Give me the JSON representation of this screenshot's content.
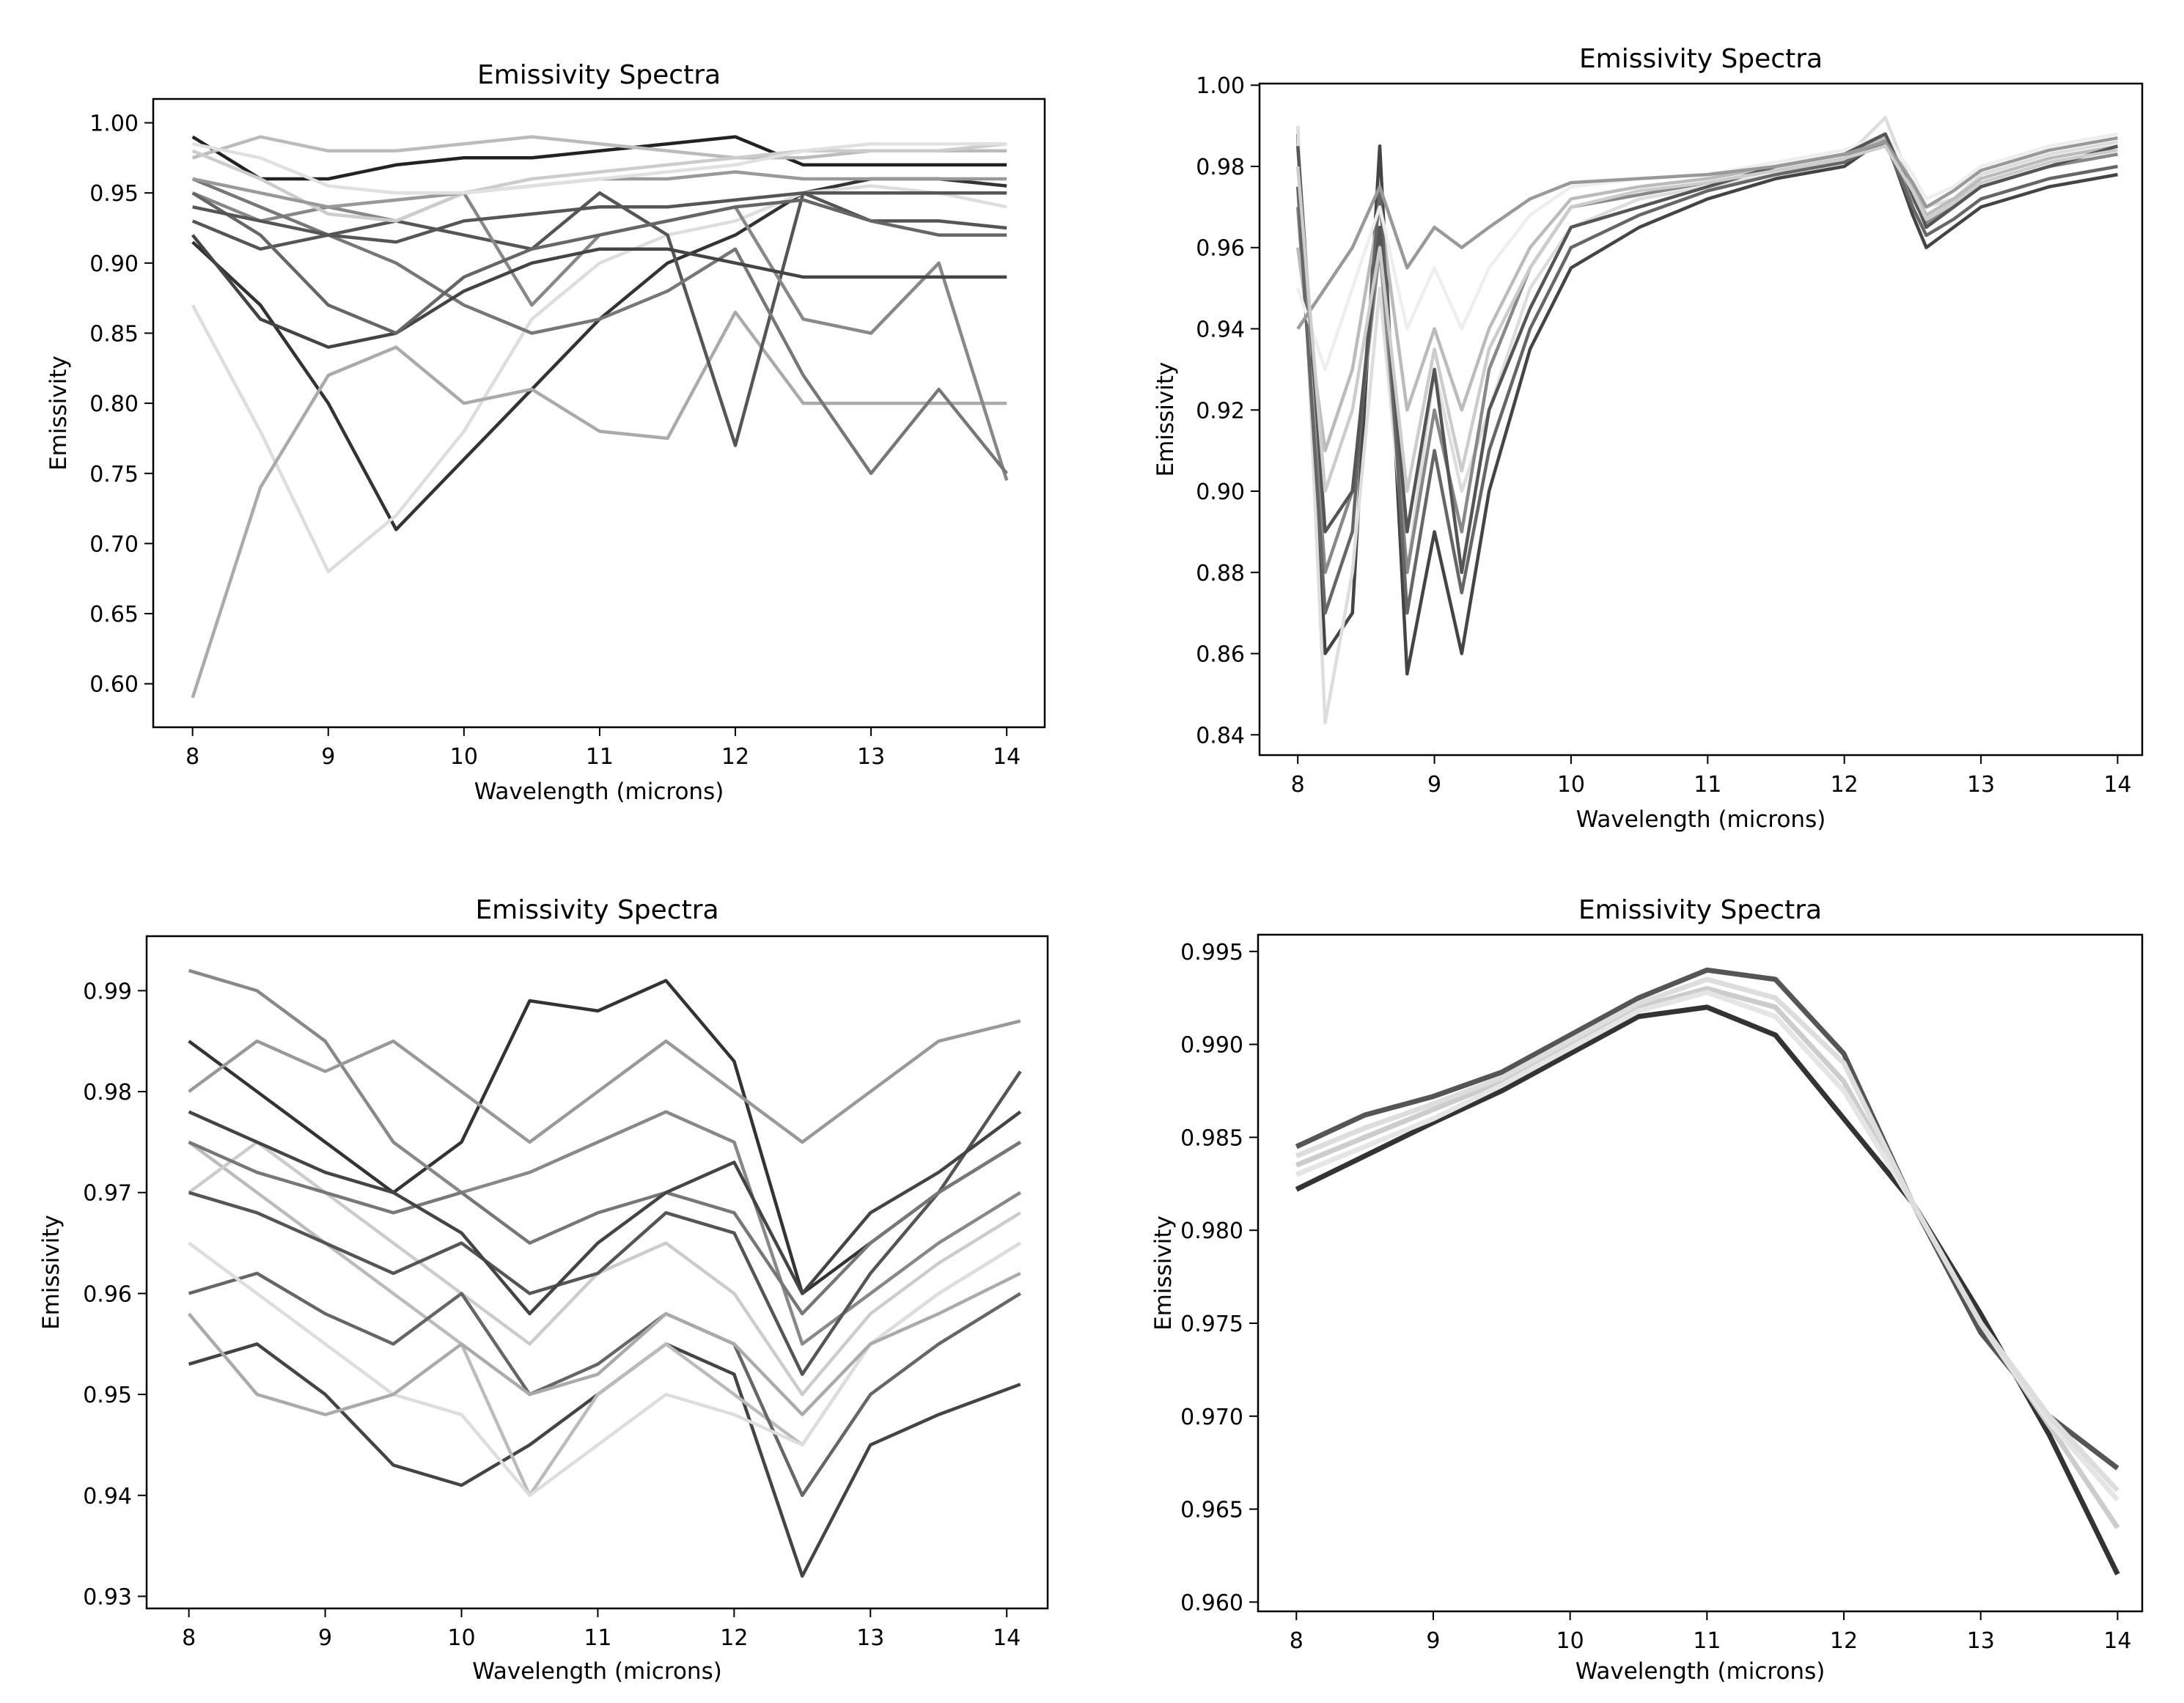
{
  "chart_data": [
    {
      "type": "line",
      "title": "Emissivity Spectra",
      "xlabel": "Wavelength (microns)",
      "ylabel": "Emissivity",
      "xlim": [
        7.71,
        14.28
      ],
      "ylim": [
        0.569,
        1.017
      ],
      "xticks": [
        "8",
        "9",
        "10",
        "11",
        "12",
        "13",
        "14"
      ],
      "yticks": [
        "0.60",
        "0.65",
        "0.70",
        "0.75",
        "0.80",
        "0.85",
        "0.90",
        "0.95",
        "1.00"
      ],
      "grid": false,
      "x": [
        8,
        8.5,
        9,
        9.5,
        10,
        10.5,
        11,
        11.5,
        12,
        12.5,
        13,
        13.5,
        14
      ],
      "series": [
        {
          "color": "#333333",
          "values": [
            0.915,
            0.87,
            0.8,
            0.71,
            0.76,
            0.81,
            0.86,
            0.9,
            0.92,
            0.95,
            0.96,
            0.96,
            0.955
          ]
        },
        {
          "color": "#dddddd",
          "values": [
            0.87,
            0.78,
            0.68,
            0.72,
            0.78,
            0.86,
            0.9,
            0.92,
            0.93,
            0.95,
            0.955,
            0.95,
            0.94
          ]
        },
        {
          "color": "#aaaaaa",
          "values": [
            0.59,
            0.74,
            0.82,
            0.84,
            0.8,
            0.81,
            0.78,
            0.775,
            0.865,
            0.8,
            0.8,
            0.8,
            0.8
          ]
        },
        {
          "color": "#555555",
          "values": [
            0.93,
            0.91,
            0.92,
            0.93,
            0.92,
            0.91,
            0.95,
            0.92,
            0.77,
            0.95,
            0.93,
            0.93,
            0.925
          ]
        },
        {
          "color": "#888888",
          "values": [
            0.95,
            0.93,
            0.94,
            0.93,
            0.95,
            0.87,
            0.92,
            0.93,
            0.94,
            0.86,
            0.85,
            0.9,
            0.745
          ]
        },
        {
          "color": "#777777",
          "values": [
            0.96,
            0.94,
            0.92,
            0.9,
            0.87,
            0.85,
            0.86,
            0.88,
            0.91,
            0.82,
            0.75,
            0.81,
            0.75
          ]
        },
        {
          "color": "#222222",
          "values": [
            0.99,
            0.96,
            0.96,
            0.97,
            0.975,
            0.975,
            0.98,
            0.985,
            0.99,
            0.97,
            0.97,
            0.97,
            0.97
          ]
        },
        {
          "color": "#bbbbbb",
          "values": [
            0.975,
            0.99,
            0.98,
            0.98,
            0.985,
            0.99,
            0.985,
            0.98,
            0.975,
            0.975,
            0.98,
            0.98,
            0.98
          ]
        },
        {
          "color": "#444444",
          "values": [
            0.92,
            0.86,
            0.84,
            0.85,
            0.88,
            0.9,
            0.91,
            0.91,
            0.9,
            0.89,
            0.89,
            0.89,
            0.89
          ]
        },
        {
          "color": "#666666",
          "values": [
            0.95,
            0.92,
            0.87,
            0.85,
            0.89,
            0.91,
            0.92,
            0.93,
            0.94,
            0.945,
            0.93,
            0.92,
            0.92
          ]
        },
        {
          "color": "#cccccc",
          "values": [
            0.98,
            0.96,
            0.935,
            0.93,
            0.95,
            0.96,
            0.965,
            0.97,
            0.975,
            0.98,
            0.98,
            0.98,
            0.985
          ]
        },
        {
          "color": "#999999",
          "values": [
            0.96,
            0.95,
            0.94,
            0.945,
            0.95,
            0.955,
            0.96,
            0.96,
            0.965,
            0.96,
            0.96,
            0.96,
            0.96
          ]
        },
        {
          "color": "#e0e0e0",
          "values": [
            0.985,
            0.975,
            0.955,
            0.95,
            0.95,
            0.955,
            0.96,
            0.965,
            0.97,
            0.98,
            0.985,
            0.985,
            0.985
          ]
        },
        {
          "color": "#555555",
          "values": [
            0.94,
            0.93,
            0.92,
            0.915,
            0.93,
            0.935,
            0.94,
            0.94,
            0.945,
            0.95,
            0.95,
            0.95,
            0.95
          ]
        }
      ]
    },
    {
      "type": "line",
      "title": "Emissivity Spectra",
      "xlabel": "Wavelength (microns)",
      "ylabel": "Emissivity",
      "xlim": [
        7.72,
        14.18
      ],
      "ylim": [
        0.835,
        1.0004
      ],
      "xticks": [
        "8",
        "9",
        "10",
        "11",
        "12",
        "13",
        "14"
      ],
      "yticks": [
        "0.84",
        "0.86",
        "0.88",
        "0.90",
        "0.92",
        "0.94",
        "0.96",
        "0.98",
        "1.00"
      ],
      "grid": false,
      "x": [
        8,
        8.2,
        8.4,
        8.6,
        8.8,
        9,
        9.2,
        9.4,
        9.7,
        10,
        10.5,
        11,
        11.5,
        12,
        12.3,
        12.5,
        12.6,
        12.8,
        13,
        13.5,
        14
      ],
      "series": [
        {
          "color": "#444444",
          "values": [
            0.988,
            0.86,
            0.87,
            0.985,
            0.855,
            0.89,
            0.86,
            0.9,
            0.935,
            0.955,
            0.965,
            0.972,
            0.977,
            0.98,
            0.987,
            0.968,
            0.96,
            0.965,
            0.97,
            0.975,
            0.978
          ]
        },
        {
          "color": "#dddddd",
          "values": [
            0.99,
            0.843,
            0.88,
            0.95,
            0.88,
            0.93,
            0.9,
            0.92,
            0.95,
            0.965,
            0.972,
            0.975,
            0.978,
            0.982,
            0.992,
            0.975,
            0.97,
            0.972,
            0.978,
            0.983,
            0.986
          ]
        },
        {
          "color": "#888888",
          "values": [
            0.97,
            0.88,
            0.9,
            0.96,
            0.88,
            0.92,
            0.89,
            0.93,
            0.955,
            0.97,
            0.973,
            0.976,
            0.979,
            0.982,
            0.986,
            0.972,
            0.966,
            0.97,
            0.975,
            0.98,
            0.983
          ]
        },
        {
          "color": "#bbbbbb",
          "values": [
            0.96,
            0.91,
            0.93,
            0.97,
            0.92,
            0.94,
            0.92,
            0.94,
            0.96,
            0.972,
            0.975,
            0.977,
            0.98,
            0.983,
            0.987,
            0.975,
            0.968,
            0.972,
            0.977,
            0.982,
            0.985
          ]
        },
        {
          "color": "#666666",
          "values": [
            0.975,
            0.87,
            0.89,
            0.975,
            0.87,
            0.91,
            0.875,
            0.91,
            0.94,
            0.96,
            0.968,
            0.974,
            0.978,
            0.981,
            0.986,
            0.97,
            0.963,
            0.967,
            0.972,
            0.977,
            0.98
          ]
        },
        {
          "color": "#eeeeee",
          "values": [
            0.95,
            0.93,
            0.95,
            0.97,
            0.94,
            0.955,
            0.94,
            0.955,
            0.968,
            0.975,
            0.977,
            0.978,
            0.981,
            0.984,
            0.988,
            0.978,
            0.972,
            0.975,
            0.98,
            0.985,
            0.988
          ]
        },
        {
          "color": "#555555",
          "values": [
            0.985,
            0.89,
            0.9,
            0.965,
            0.89,
            0.93,
            0.88,
            0.92,
            0.945,
            0.965,
            0.97,
            0.975,
            0.98,
            0.983,
            0.988,
            0.973,
            0.965,
            0.97,
            0.975,
            0.98,
            0.985
          ]
        },
        {
          "color": "#999999",
          "values": [
            0.94,
            0.95,
            0.96,
            0.975,
            0.955,
            0.965,
            0.96,
            0.965,
            0.972,
            0.976,
            0.977,
            0.978,
            0.98,
            0.983,
            0.986,
            0.976,
            0.97,
            0.974,
            0.979,
            0.984,
            0.987
          ]
        },
        {
          "color": "#cccccc",
          "values": [
            0.98,
            0.9,
            0.92,
            0.96,
            0.9,
            0.935,
            0.905,
            0.935,
            0.955,
            0.97,
            0.974,
            0.976,
            0.979,
            0.982,
            0.985,
            0.974,
            0.967,
            0.971,
            0.976,
            0.981,
            0.984
          ]
        }
      ]
    },
    {
      "type": "line",
      "title": "Emissivity Spectra",
      "xlabel": "Wavelength (microns)",
      "ylabel": "Emissivity",
      "xlim": [
        7.69,
        14.3
      ],
      "ylim": [
        0.9288,
        0.9954
      ],
      "xticks": [
        "8",
        "9",
        "10",
        "11",
        "12",
        "13",
        "14"
      ],
      "yticks": [
        "0.93",
        "0.94",
        "0.95",
        "0.96",
        "0.97",
        "0.98",
        "0.99"
      ],
      "grid": false,
      "x": [
        8,
        8.5,
        9,
        9.5,
        10,
        10.5,
        11,
        11.5,
        12,
        12.5,
        13,
        13.5,
        14.1
      ],
      "series": [
        {
          "color": "#333333",
          "values": [
            0.985,
            0.98,
            0.975,
            0.97,
            0.975,
            0.989,
            0.988,
            0.991,
            0.983,
            0.96,
            0.965,
            0.97,
            0.975
          ]
        },
        {
          "color": "#444444",
          "values": [
            0.953,
            0.955,
            0.95,
            0.943,
            0.941,
            0.945,
            0.95,
            0.955,
            0.952,
            0.932,
            0.945,
            0.948,
            0.951
          ]
        },
        {
          "color": "#888888",
          "values": [
            0.992,
            0.99,
            0.985,
            0.975,
            0.97,
            0.972,
            0.975,
            0.978,
            0.975,
            0.955,
            0.96,
            0.965,
            0.97
          ]
        },
        {
          "color": "#bbbbbb",
          "values": [
            0.975,
            0.97,
            0.965,
            0.96,
            0.955,
            0.94,
            0.95,
            0.955,
            0.95,
            0.945,
            0.955,
            0.96,
            0.965
          ]
        },
        {
          "color": "#cccccc",
          "values": [
            0.97,
            0.975,
            0.97,
            0.965,
            0.96,
            0.955,
            0.962,
            0.965,
            0.96,
            0.95,
            0.958,
            0.963,
            0.968
          ]
        },
        {
          "color": "#666666",
          "values": [
            0.96,
            0.962,
            0.958,
            0.955,
            0.96,
            0.95,
            0.953,
            0.958,
            0.955,
            0.94,
            0.95,
            0.955,
            0.96
          ]
        },
        {
          "color": "#999999",
          "values": [
            0.98,
            0.985,
            0.982,
            0.985,
            0.98,
            0.975,
            0.98,
            0.985,
            0.98,
            0.975,
            0.98,
            0.985,
            0.987
          ]
        },
        {
          "color": "#555555",
          "values": [
            0.97,
            0.968,
            0.965,
            0.962,
            0.965,
            0.96,
            0.962,
            0.968,
            0.966,
            0.952,
            0.962,
            0.97,
            0.982
          ]
        },
        {
          "color": "#dddddd",
          "values": [
            0.965,
            0.96,
            0.955,
            0.95,
            0.948,
            0.94,
            0.945,
            0.95,
            0.948,
            0.945,
            0.955,
            0.96,
            0.965
          ]
        },
        {
          "color": "#777777",
          "values": [
            0.975,
            0.972,
            0.97,
            0.968,
            0.97,
            0.965,
            0.968,
            0.97,
            0.968,
            0.958,
            0.965,
            0.97,
            0.975
          ]
        },
        {
          "color": "#aaaaaa",
          "values": [
            0.958,
            0.95,
            0.948,
            0.95,
            0.955,
            0.95,
            0.952,
            0.958,
            0.955,
            0.948,
            0.955,
            0.958,
            0.962
          ]
        },
        {
          "color": "#444444",
          "values": [
            0.978,
            0.975,
            0.972,
            0.97,
            0.966,
            0.958,
            0.965,
            0.97,
            0.973,
            0.96,
            0.968,
            0.972,
            0.978
          ]
        }
      ]
    },
    {
      "type": "line",
      "title": "Emissivity Spectra",
      "xlabel": "Wavelength (microns)",
      "ylabel": "Emissivity",
      "xlim": [
        7.72,
        14.18
      ],
      "ylim": [
        0.9595,
        0.9959
      ],
      "xticks": [
        "8",
        "9",
        "10",
        "11",
        "12",
        "13",
        "14"
      ],
      "yticks": [
        "0.960",
        "0.965",
        "0.970",
        "0.975",
        "0.980",
        "0.985",
        "0.990",
        "0.995"
      ],
      "grid": false,
      "x": [
        8,
        8.5,
        9,
        9.5,
        10,
        10.5,
        11,
        11.5,
        12,
        12.5,
        13,
        13.5,
        14
      ],
      "series": [
        {
          "color": "#555555",
          "values": [
            0.9845,
            0.9862,
            0.9872,
            0.9885,
            0.9905,
            0.9925,
            0.994,
            0.9935,
            0.9895,
            0.9815,
            0.9745,
            0.97,
            0.9672
          ]
        },
        {
          "color": "#333333",
          "values": [
            0.9822,
            0.984,
            0.9858,
            0.9875,
            0.9895,
            0.9915,
            0.992,
            0.9905,
            0.986,
            0.9815,
            0.9755,
            0.969,
            0.9615
          ]
        },
        {
          "color": "#cccccc",
          "values": [
            0.9835,
            0.985,
            0.9865,
            0.988,
            0.99,
            0.992,
            0.993,
            0.992,
            0.988,
            0.9815,
            0.975,
            0.9695,
            0.964
          ]
        },
        {
          "color": "#e5e5e5",
          "values": [
            0.983,
            0.9845,
            0.986,
            0.9878,
            0.9898,
            0.9918,
            0.9928,
            0.9915,
            0.9875,
            0.9815,
            0.975,
            0.9697,
            0.9655
          ]
        },
        {
          "color": "#dddddd",
          "values": [
            0.984,
            0.9855,
            0.9868,
            0.9882,
            0.9902,
            0.9922,
            0.9935,
            0.9925,
            0.989,
            0.9815,
            0.975,
            0.97,
            0.966
          ]
        }
      ]
    }
  ]
}
